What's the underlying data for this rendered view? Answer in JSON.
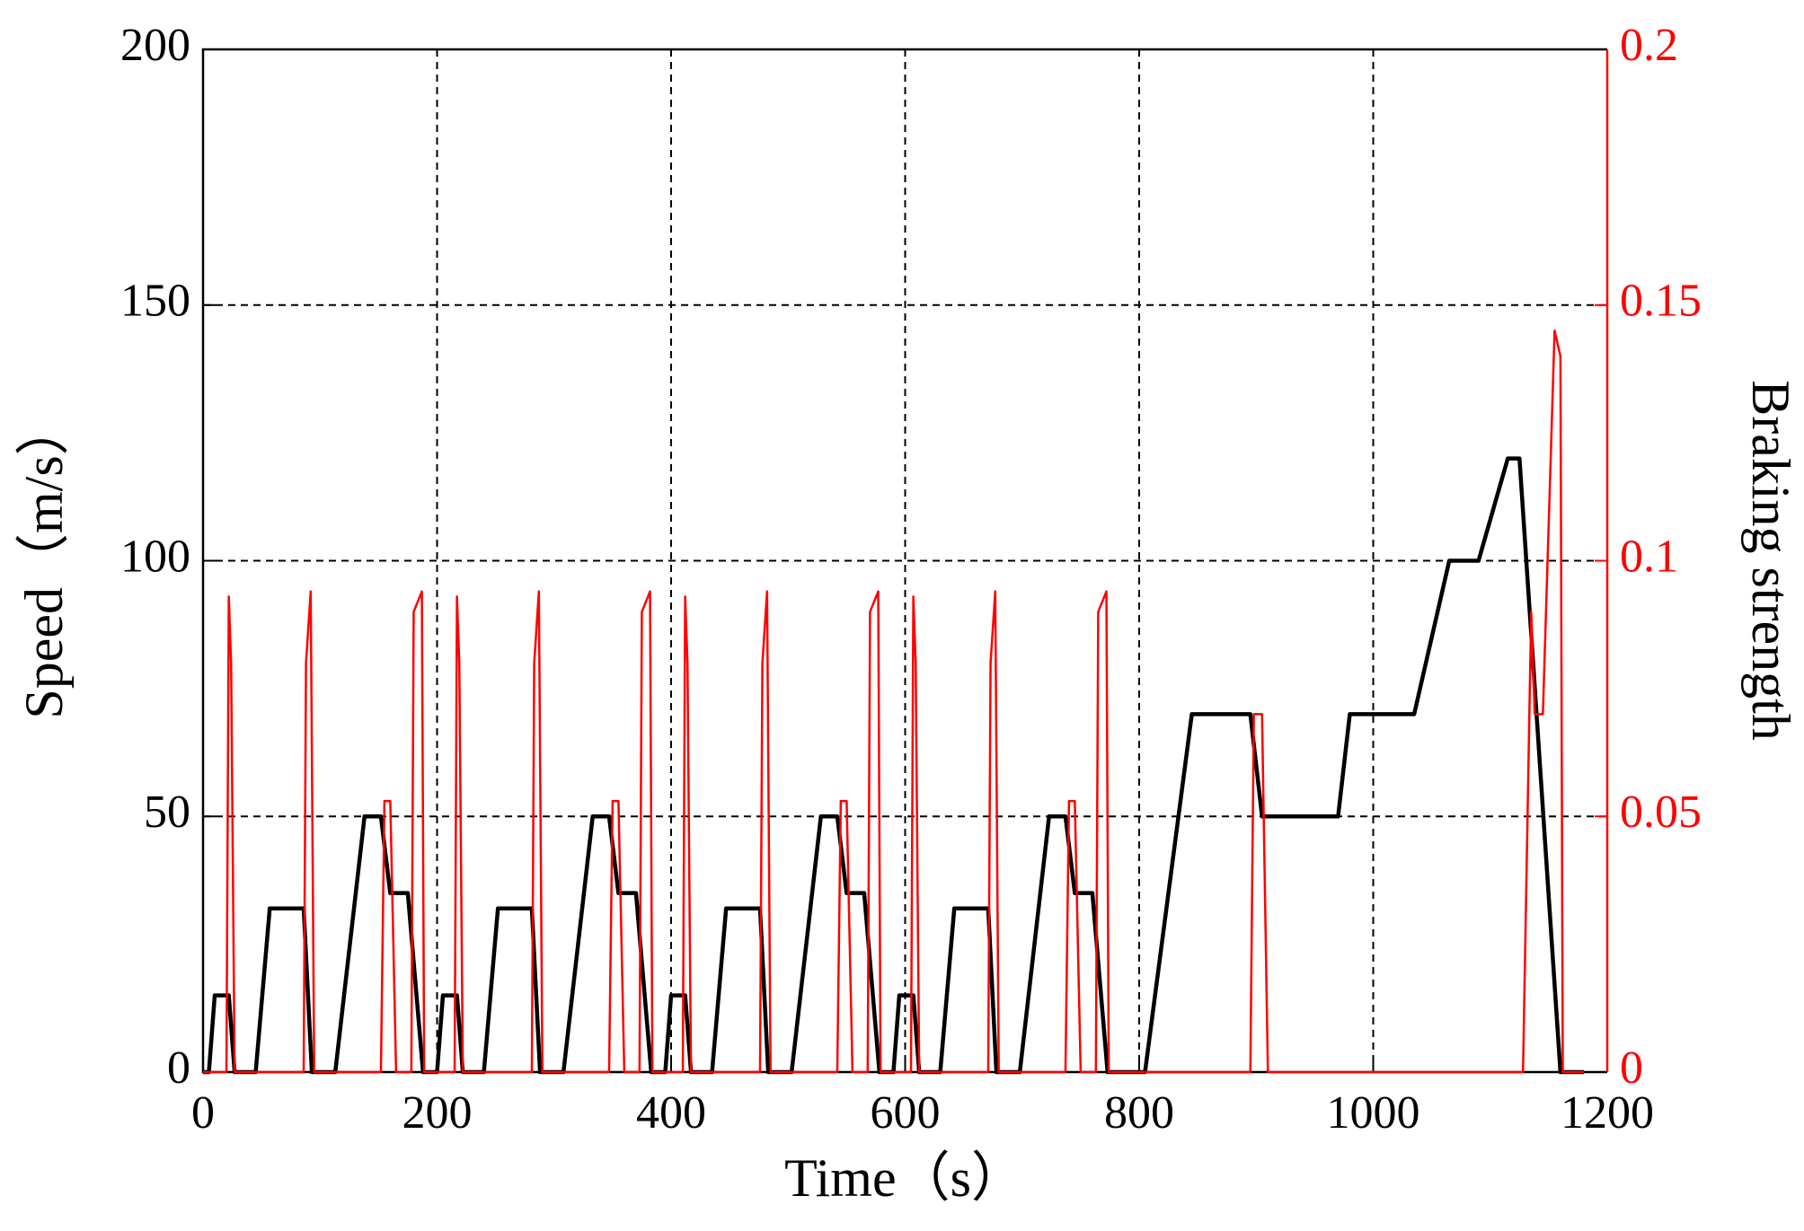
{
  "chart_data": {
    "type": "line",
    "xlabel": "Time（s）",
    "ylabel": "Speed（m/s）",
    "y2label": "Braking strength",
    "xlim": [
      0,
      1200
    ],
    "xticks": [
      0,
      200,
      400,
      600,
      800,
      1000,
      1200
    ],
    "ylim": [
      0,
      200
    ],
    "yticks": [
      0,
      50,
      100,
      150,
      200
    ],
    "y2lim": [
      0,
      0.2
    ],
    "y2ticks": [
      0,
      0.05,
      0.1,
      0.15,
      0.2
    ],
    "grid": true,
    "series": [
      {
        "color": "#000000",
        "axis": "y",
        "x": [
          0,
          5,
          10,
          22,
          27,
          45,
          57,
          86,
          93,
          113,
          138,
          152,
          160,
          175,
          188,
          195,
          200,
          205,
          217,
          222,
          240,
          252,
          281,
          288,
          308,
          333,
          347,
          355,
          370,
          383,
          390,
          395,
          400,
          412,
          417,
          435,
          447,
          476,
          483,
          503,
          528,
          542,
          550,
          565,
          578,
          585,
          590,
          595,
          607,
          612,
          630,
          642,
          671,
          678,
          698,
          723,
          737,
          745,
          760,
          773,
          805,
          845,
          895,
          905,
          970,
          980,
          1035,
          1065,
          1090,
          1115,
          1125,
          1160,
          1180
        ],
        "values": [
          0,
          0,
          15,
          15,
          0,
          0,
          32,
          32,
          0,
          0,
          50,
          50,
          35,
          35,
          0,
          0,
          0,
          15,
          15,
          0,
          0,
          32,
          32,
          0,
          0,
          50,
          50,
          35,
          35,
          0,
          0,
          0,
          15,
          15,
          0,
          0,
          32,
          32,
          0,
          0,
          50,
          50,
          35,
          35,
          0,
          0,
          0,
          15,
          15,
          0,
          0,
          32,
          32,
          0,
          0,
          50,
          50,
          35,
          35,
          0,
          0,
          70,
          70,
          50,
          50,
          70,
          70,
          100,
          100,
          120,
          120,
          0,
          0
        ]
      },
      {
        "color": "#ff0000",
        "axis": "y2",
        "x": [
          0,
          20,
          22,
          24,
          27,
          86,
          88,
          92,
          95,
          152,
          155,
          160,
          165,
          178,
          180,
          187,
          189,
          215,
          217,
          219,
          222,
          281,
          283,
          287,
          290,
          347,
          350,
          355,
          360,
          373,
          375,
          382,
          384,
          410,
          412,
          414,
          417,
          476,
          478,
          482,
          485,
          542,
          545,
          550,
          555,
          568,
          570,
          577,
          579,
          605,
          607,
          609,
          612,
          671,
          673,
          677,
          680,
          737,
          740,
          745,
          750,
          763,
          765,
          772,
          774,
          895,
          898,
          905,
          910,
          1128,
          1135,
          1138,
          1145,
          1155,
          1160,
          1162,
          1180
        ],
        "values": [
          0,
          0,
          0.093,
          0.08,
          0,
          0,
          0.08,
          0.094,
          0,
          0,
          0.053,
          0.053,
          0,
          0,
          0.09,
          0.094,
          0,
          0,
          0.093,
          0.08,
          0,
          0,
          0.08,
          0.094,
          0,
          0,
          0.053,
          0.053,
          0,
          0,
          0.09,
          0.094,
          0,
          0,
          0.093,
          0.08,
          0,
          0,
          0.08,
          0.094,
          0,
          0,
          0.053,
          0.053,
          0,
          0,
          0.09,
          0.094,
          0,
          0,
          0.093,
          0.08,
          0,
          0,
          0.08,
          0.094,
          0,
          0,
          0.053,
          0.053,
          0,
          0,
          0.09,
          0.094,
          0,
          0,
          0.07,
          0.07,
          0,
          0,
          0.09,
          0.07,
          0.07,
          0.145,
          0.14,
          0,
          0
        ]
      }
    ]
  }
}
